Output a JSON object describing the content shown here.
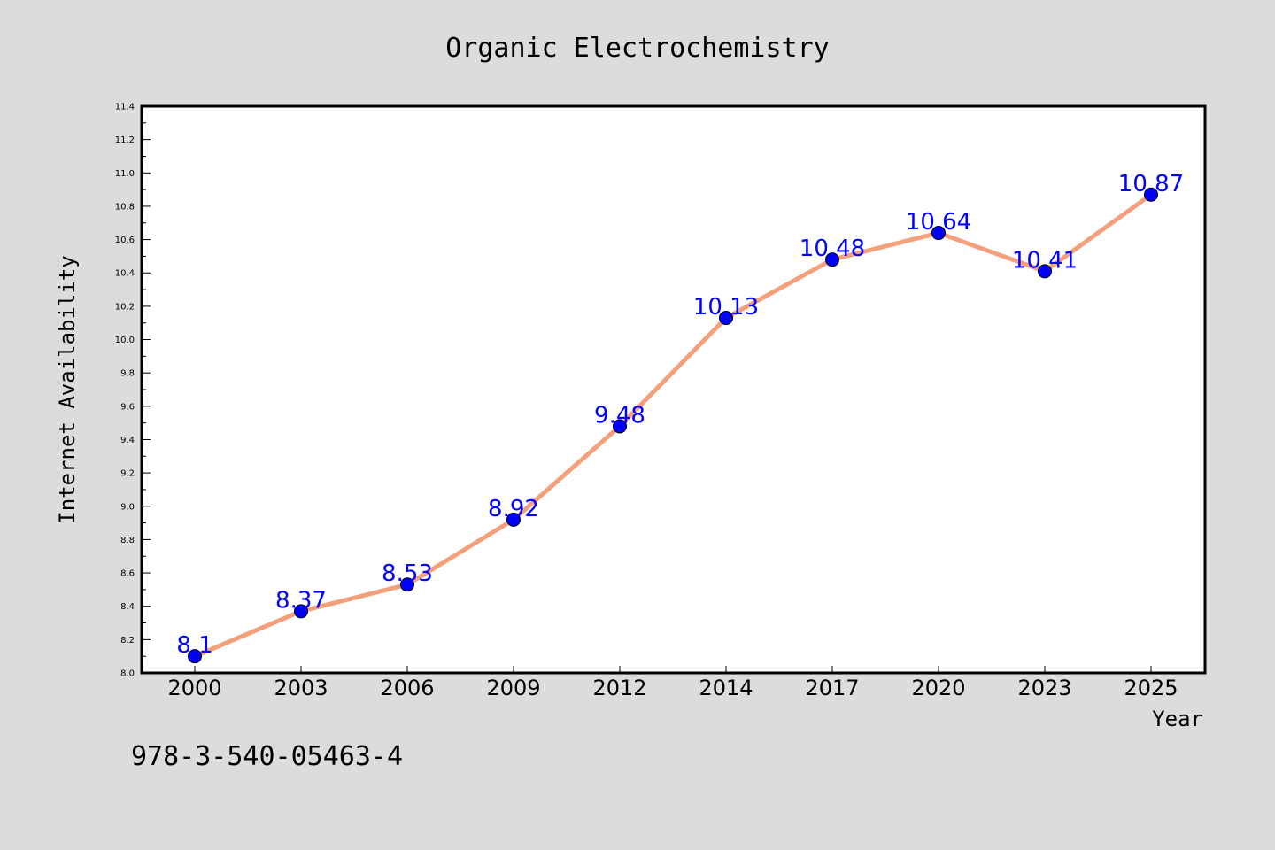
{
  "chart_data": {
    "type": "line",
    "title": "Organic Electrochemistry",
    "xlabel": "Year",
    "ylabel": "Internet Availability",
    "categories": [
      "2000",
      "2003",
      "2006",
      "2009",
      "2012",
      "2014",
      "2017",
      "2020",
      "2023",
      "2025"
    ],
    "series": [
      {
        "values": [
          8.1,
          8.37,
          8.53,
          8.92,
          9.48,
          10.13,
          10.48,
          10.64,
          10.41,
          10.87
        ]
      }
    ],
    "data_labels": [
      "8.1",
      "8.37",
      "8.53",
      "8.92",
      "9.48",
      "10.13",
      "10.48",
      "10.64",
      "10.41",
      "10.87"
    ],
    "ylim": [
      8.0,
      11.4
    ],
    "yticks": [
      "8.0",
      "8.2",
      "8.4",
      "8.6",
      "8.8",
      "9.0",
      "9.2",
      "9.4",
      "9.6",
      "9.8",
      "10.0",
      "10.2",
      "10.4",
      "10.6",
      "10.8",
      "11.0",
      "11.2",
      "11.4"
    ],
    "grid": false,
    "line_color": "#f4a07c",
    "marker_color": "#0000ff",
    "label_color": "#0000ff"
  },
  "footer": {
    "isbn": "978-3-540-05463-4"
  }
}
